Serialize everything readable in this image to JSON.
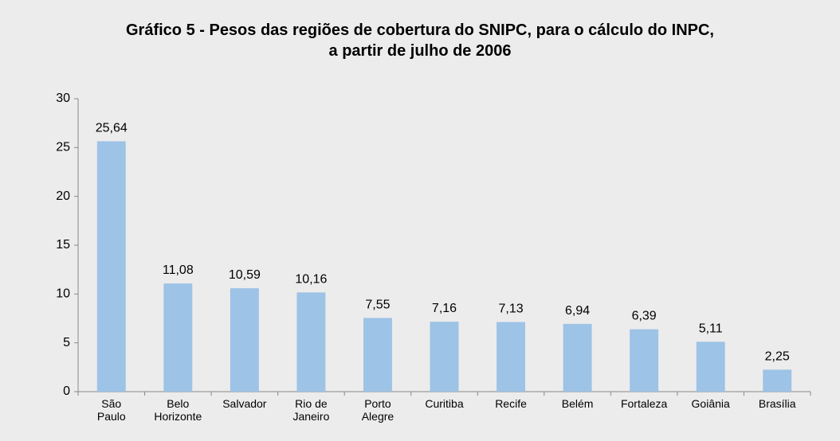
{
  "chart_data": {
    "type": "bar",
    "title": [
      "Gráfico 5 - Pesos das regiões de cobertura do SNIPC, para o cálculo do INPC,",
      "a partir de julho de 2006"
    ],
    "categories": [
      "São\nPaulo",
      "Belo\nHorizonte",
      "Salvador",
      "Rio de\nJaneiro",
      "Porto\nAlegre",
      "Curitiba",
      "Recife",
      "Belém",
      "Fortaleza",
      "Goiânia",
      "Brasília"
    ],
    "values": [
      25.64,
      11.08,
      10.59,
      10.16,
      7.55,
      7.16,
      7.13,
      6.94,
      6.39,
      5.11,
      2.25
    ],
    "value_labels": [
      "25,64",
      "11,08",
      "10,59",
      "10,16",
      "7,55",
      "7,16",
      "7,13",
      "6,94",
      "6,39",
      "5,11",
      "2,25"
    ],
    "color": "#9dc3e6",
    "ylim": [
      0,
      30
    ],
    "yticks": [
      0,
      5,
      10,
      15,
      20,
      25,
      30
    ],
    "grid": false
  }
}
